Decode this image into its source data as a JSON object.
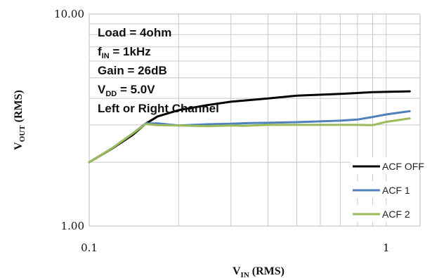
{
  "chart_data": {
    "type": "line",
    "title": "",
    "xscale": "log",
    "yscale": "log",
    "xlim": [
      0.1,
      1.3
    ],
    "ylim": [
      1.0,
      10.0
    ],
    "grid": true,
    "legend_position": "bottom-right",
    "x_ticks": [
      0.1,
      0.2,
      0.3,
      0.4,
      0.5,
      0.6,
      0.7,
      0.8,
      0.9,
      1.0
    ],
    "x_tick_labels": [
      "0.1",
      "1"
    ],
    "y_ticks": [
      1,
      2,
      3,
      4,
      5,
      6,
      7,
      8,
      9,
      10
    ],
    "y_tick_labels": [
      "1.00",
      "10.00"
    ],
    "xlabel": {
      "main": "V",
      "sub": "IN",
      "rest": " (RMS)"
    },
    "ylabel": {
      "main": "V",
      "sub": "OUT",
      "rest": " (RMS)"
    },
    "annotations": [
      {
        "main": "Load = 4ohm",
        "sub": "",
        "rest": ""
      },
      {
        "main": "f",
        "sub": "IN",
        "rest": " = 1kHz"
      },
      {
        "main": "Gain = 26dB",
        "sub": "",
        "rest": ""
      },
      {
        "main": "V",
        "sub": "DD",
        "rest": " =  5.0V"
      },
      {
        "main": "Left or Right Channel",
        "sub": "",
        "rest": ""
      }
    ],
    "series": [
      {
        "name": "ACF OFF",
        "color": "#000000",
        "x": [
          0.1,
          0.12,
          0.14,
          0.155,
          0.17,
          0.2,
          0.25,
          0.3,
          0.4,
          0.5,
          0.7,
          0.9,
          1.2
        ],
        "y": [
          2.0,
          2.33,
          2.69,
          3.04,
          3.29,
          3.52,
          3.72,
          3.86,
          4.0,
          4.12,
          4.2,
          4.28,
          4.32
        ]
      },
      {
        "name": "ACF 1",
        "color": "#4F81BD",
        "x": [
          0.1,
          0.12,
          0.14,
          0.155,
          0.17,
          0.2,
          0.25,
          0.3,
          0.35,
          0.4,
          0.5,
          0.7,
          0.8,
          0.9,
          1.0,
          1.2
        ],
        "y": [
          2.0,
          2.34,
          2.73,
          3.05,
          3.05,
          2.98,
          3.02,
          3.04,
          3.06,
          3.07,
          3.09,
          3.14,
          3.18,
          3.27,
          3.36,
          3.48
        ]
      },
      {
        "name": "ACF 2",
        "color": "#9BBB59",
        "x": [
          0.1,
          0.12,
          0.14,
          0.155,
          0.17,
          0.2,
          0.25,
          0.3,
          0.33,
          0.4,
          0.5,
          0.7,
          0.8,
          0.9,
          1.0,
          1.2
        ],
        "y": [
          2.0,
          2.34,
          2.73,
          3.03,
          2.99,
          2.98,
          2.96,
          2.98,
          2.97,
          3.0,
          3.0,
          3.0,
          3.0,
          2.99,
          3.1,
          3.22
        ]
      }
    ]
  }
}
